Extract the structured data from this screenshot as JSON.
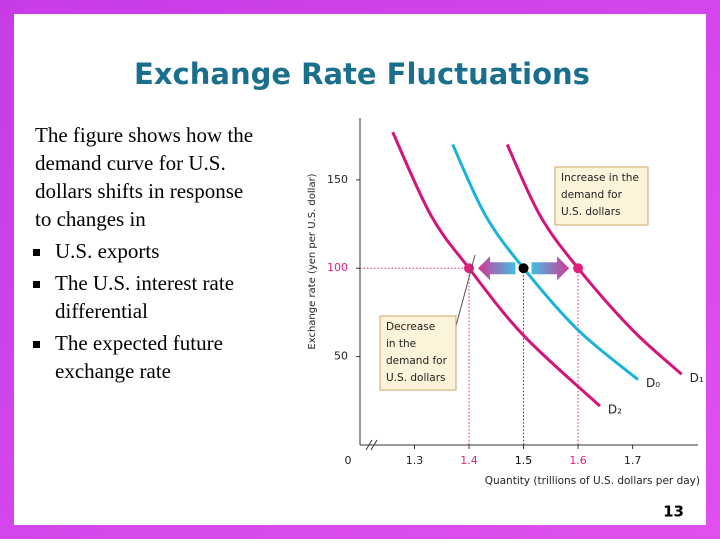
{
  "slide": {
    "title": "Exchange Rate Fluctuations",
    "intro_lines": [
      "The figure shows how the",
      "demand curve for U.S.",
      "dollars shifts in response",
      "to changes in"
    ],
    "bullets": [
      [
        "U.S. exports"
      ],
      [
        "The U.S. interest rate",
        "differential"
      ],
      [
        "The expected future",
        "exchange rate"
      ]
    ],
    "page_number": "13"
  },
  "chart_data": {
    "type": "line",
    "x_label": "Quantity (trillions of U.S. dollars per day)",
    "y_label": "Exchange rate (yen per U.S. dollar)",
    "origin_label": "0",
    "xlim": [
      1.2,
      1.82
    ],
    "xticks": [
      1.3,
      1.4,
      1.5,
      1.6,
      1.7
    ],
    "ylim": [
      0,
      185
    ],
    "yticks": [
      50,
      100,
      150
    ],
    "guide_color": "#e0207f",
    "series": [
      {
        "name": "D₂",
        "color": "#d4147a",
        "x": [
          1.26,
          1.33,
          1.4,
          1.5,
          1.64
        ],
        "values": [
          177,
          130,
          100,
          62,
          22
        ]
      },
      {
        "name": "D₀",
        "color": "#19b2dc",
        "x": [
          1.37,
          1.43,
          1.5,
          1.6,
          1.71
        ],
        "values": [
          170,
          130,
          100,
          65,
          37
        ]
      },
      {
        "name": "D₁",
        "color": "#d4147a",
        "x": [
          1.47,
          1.53,
          1.6,
          1.7,
          1.79
        ],
        "values": [
          170,
          130,
          100,
          65,
          40
        ]
      }
    ],
    "points": [
      {
        "x": 1.4,
        "y": 100,
        "color": "#e0207f"
      },
      {
        "x": 1.5,
        "y": 100,
        "color": "#000000"
      },
      {
        "x": 1.6,
        "y": 100,
        "color": "#e0207f"
      }
    ],
    "annotations": [
      {
        "lines": [
          "Increase in the",
          "demand for",
          "U.S. dollars"
        ],
        "x": 1.6,
        "y": 130
      },
      {
        "lines": [
          "Decrease",
          "in the",
          "demand for",
          "U.S. dollars"
        ],
        "x": 1.4,
        "y": 120
      }
    ]
  }
}
